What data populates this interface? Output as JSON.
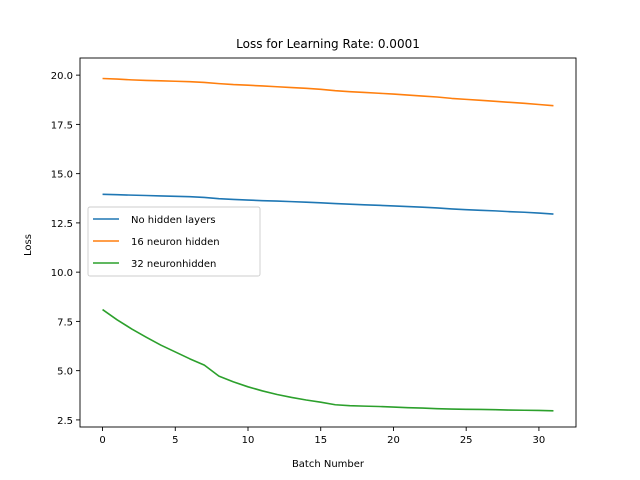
{
  "chart_data": {
    "type": "line",
    "title": "Loss for Learning Rate: 0.0001",
    "xlabel": "Batch Number",
    "ylabel": "Loss",
    "xlim": [
      -1.55,
      32.55
    ],
    "ylim": [
      2.14,
      20.87
    ],
    "xticks": [
      0,
      5,
      10,
      15,
      20,
      25,
      30
    ],
    "yticks": [
      2.5,
      5.0,
      7.5,
      10.0,
      12.5,
      15.0,
      17.5,
      20.0
    ],
    "ytick_labels": [
      "2.5",
      "5.0",
      "7.5",
      "10.0",
      "12.5",
      "15.0",
      "17.5",
      "20.0"
    ],
    "grid": false,
    "legend_position": "center-left",
    "x": [
      0,
      1,
      2,
      3,
      4,
      5,
      6,
      7,
      8,
      9,
      10,
      11,
      12,
      13,
      14,
      15,
      16,
      17,
      18,
      19,
      20,
      21,
      22,
      23,
      24,
      25,
      26,
      27,
      28,
      29,
      30,
      31
    ],
    "series": [
      {
        "name": "No hidden layers",
        "color": "#1f77b4",
        "values": [
          13.95,
          13.93,
          13.91,
          13.89,
          13.87,
          13.85,
          13.83,
          13.79,
          13.73,
          13.69,
          13.66,
          13.63,
          13.61,
          13.58,
          13.55,
          13.52,
          13.48,
          13.45,
          13.42,
          13.39,
          13.36,
          13.33,
          13.3,
          13.26,
          13.21,
          13.17,
          13.14,
          13.11,
          13.07,
          13.04,
          13.0,
          12.95
        ]
      },
      {
        "name": "16 neuron hidden",
        "color": "#ff7f0e",
        "values": [
          19.83,
          19.8,
          19.76,
          19.73,
          19.71,
          19.69,
          19.67,
          19.63,
          19.57,
          19.52,
          19.49,
          19.45,
          19.41,
          19.37,
          19.33,
          19.28,
          19.21,
          19.16,
          19.12,
          19.08,
          19.04,
          18.99,
          18.94,
          18.89,
          18.82,
          18.77,
          18.72,
          18.67,
          18.62,
          18.57,
          18.51,
          18.45
        ]
      },
      {
        "name": "32 neuronhidden",
        "color": "#2ca02c",
        "values": [
          8.1,
          7.58,
          7.12,
          6.7,
          6.3,
          5.95,
          5.6,
          5.28,
          4.72,
          4.43,
          4.18,
          3.97,
          3.79,
          3.64,
          3.51,
          3.4,
          3.27,
          3.22,
          3.2,
          3.18,
          3.15,
          3.12,
          3.1,
          3.07,
          3.05,
          3.04,
          3.03,
          3.02,
          3.0,
          2.99,
          2.98,
          2.96
        ]
      }
    ]
  }
}
